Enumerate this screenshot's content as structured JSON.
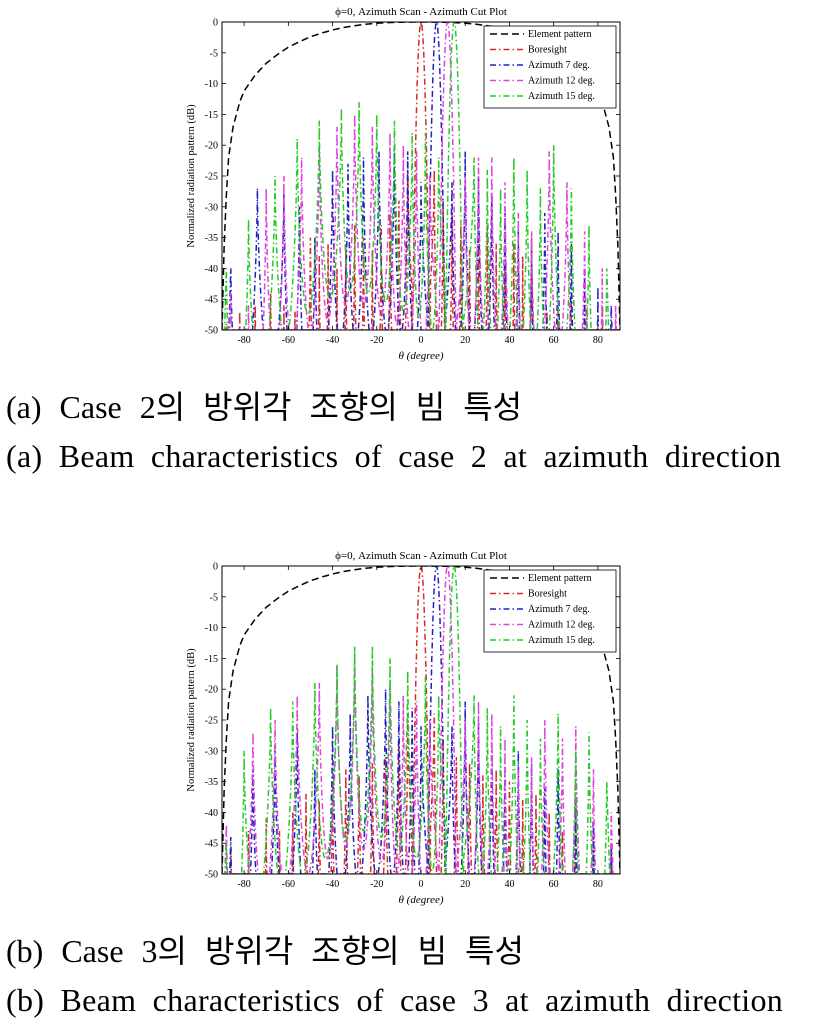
{
  "figures": [
    {
      "caption_ko": "(a) Case 2의 방위각 조향의 빔 특성",
      "caption_en": "(a) Beam characteristics of case 2 at azimuth direction"
    },
    {
      "caption_ko": "(b) Case 3의 방위각 조향의 빔 특성",
      "caption_en": "(b) Beam characteristics of case 3 at azimuth direction"
    }
  ],
  "chart_data": [
    {
      "type": "line",
      "title": "ϕ=0, Azimuth Scan - Azimuth Cut Plot",
      "xlabel": "θ (degree)",
      "ylabel": "Normalized radiation pattern (dB)",
      "xlim": [
        -90,
        90
      ],
      "ylim": [
        -50,
        0
      ],
      "xticks": [
        -80,
        -60,
        -40,
        -20,
        0,
        20,
        40,
        60,
        80
      ],
      "yticks": [
        0,
        -5,
        -10,
        -15,
        -20,
        -25,
        -30,
        -35,
        -40,
        -45,
        -50
      ],
      "grid": false,
      "legend_position": "top-right",
      "series": [
        {
          "name": "Element pattern",
          "color": "#000000",
          "dash": "dashed",
          "x": [
            -90,
            -89,
            -88,
            -87,
            -85,
            -82,
            -80,
            -75,
            -70,
            -65,
            -60,
            -55,
            -50,
            -45,
            -40,
            -35,
            -30,
            -25,
            -20,
            -15,
            -10,
            -5,
            0,
            5,
            10,
            15,
            20,
            25,
            30,
            35,
            40,
            45,
            50,
            55,
            60,
            65,
            70,
            75,
            80,
            82,
            85,
            87,
            88,
            89,
            90
          ],
          "y": [
            -50,
            -36,
            -28,
            -22,
            -17,
            -13,
            -11.2,
            -8.6,
            -6.7,
            -5.3,
            -4.1,
            -3.2,
            -2.4,
            -1.8,
            -1.3,
            -0.9,
            -0.6,
            -0.35,
            -0.2,
            -0.1,
            -0.04,
            -0.01,
            0,
            -0.01,
            -0.04,
            -0.1,
            -0.2,
            -0.35,
            -0.6,
            -0.9,
            -1.3,
            -1.8,
            -2.4,
            -3.2,
            -4.1,
            -5.3,
            -6.7,
            -8.6,
            -11.2,
            -13,
            -17,
            -22,
            -28,
            -36,
            -50
          ]
        },
        {
          "name": "Boresight",
          "color": "#d42a2a",
          "dash": "dashdot",
          "center": 0,
          "lobes": [
            [
              -88,
              -49
            ],
            [
              -82,
              -47
            ],
            [
              -75,
              -46
            ],
            [
              -68,
              -44
            ],
            [
              -62,
              -46
            ],
            [
              -57,
              -47
            ],
            [
              -50,
              -35
            ],
            [
              -46,
              -38
            ],
            [
              -42,
              -36
            ],
            [
              -38,
              -40
            ],
            [
              -34,
              -36
            ],
            [
              -30,
              -33
            ],
            [
              -26,
              -35
            ],
            [
              -22,
              -37
            ],
            [
              -18,
              -33
            ],
            [
              -14,
              -31
            ],
            [
              -10,
              -29
            ],
            [
              -6,
              -24
            ],
            [
              6,
              -24
            ],
            [
              10,
              -29
            ],
            [
              14,
              -31
            ],
            [
              18,
              -33
            ],
            [
              22,
              -37
            ],
            [
              26,
              -35
            ],
            [
              30,
              -33
            ],
            [
              34,
              -36
            ],
            [
              38,
              -40
            ],
            [
              42,
              -36
            ],
            [
              46,
              -38
            ],
            [
              50,
              -35
            ],
            [
              57,
              -47
            ],
            [
              62,
              -46
            ],
            [
              68,
              -44
            ],
            [
              75,
              -46
            ],
            [
              82,
              -47
            ],
            [
              88,
              -49
            ]
          ]
        },
        {
          "name": "Azimuth 7 deg.",
          "color": "#2020c0",
          "dash": "dashdot",
          "center": 7,
          "lobes": [
            [
              -86,
              -40
            ],
            [
              -74,
              -27
            ],
            [
              -62,
              -28
            ],
            [
              -55,
              -30
            ],
            [
              -48,
              -35
            ],
            [
              -40,
              -24
            ],
            [
              -33,
              -23
            ],
            [
              -26,
              -22
            ],
            [
              -19,
              -21
            ],
            [
              -12,
              -20
            ],
            [
              -6,
              -21
            ],
            [
              0,
              -26
            ],
            [
              14,
              -26
            ],
            [
              20,
              -21
            ],
            [
              26,
              -25
            ],
            [
              32,
              -28
            ],
            [
              38,
              -31
            ],
            [
              44,
              -34
            ],
            [
              50,
              -36
            ],
            [
              56,
              -31
            ],
            [
              62,
              -34
            ],
            [
              68,
              -36
            ],
            [
              74,
              -41
            ],
            [
              80,
              -43
            ],
            [
              86,
              -46
            ]
          ]
        },
        {
          "name": "Azimuth 12 deg.",
          "color": "#e040e0",
          "dash": "dashdot",
          "center": 12,
          "lobes": [
            [
              -86,
              -44
            ],
            [
              -78,
              -46
            ],
            [
              -70,
              -27
            ],
            [
              -62,
              -25
            ],
            [
              -54,
              -22
            ],
            [
              -46,
              -20
            ],
            [
              -38,
              -17
            ],
            [
              -30,
              -15
            ],
            [
              -22,
              -17
            ],
            [
              -14,
              -18
            ],
            [
              -8,
              -20
            ],
            [
              -2,
              -21
            ],
            [
              4,
              -25
            ],
            [
              20,
              -25
            ],
            [
              26,
              -22
            ],
            [
              32,
              -22
            ],
            [
              38,
              -26
            ],
            [
              44,
              -31
            ],
            [
              50,
              -34
            ],
            [
              58,
              -21
            ],
            [
              66,
              -26
            ],
            [
              74,
              -34
            ],
            [
              82,
              -40
            ],
            [
              88,
              -46
            ]
          ]
        },
        {
          "name": "Azimuth 15 deg.",
          "color": "#22cc22",
          "dash": "dashdot",
          "center": 15,
          "lobes": [
            [
              -88,
              -40
            ],
            [
              -78,
              -32
            ],
            [
              -66,
              -25
            ],
            [
              -56,
              -19
            ],
            [
              -46,
              -16
            ],
            [
              -36,
              -14
            ],
            [
              -28,
              -13
            ],
            [
              -20,
              -15
            ],
            [
              -12,
              -16
            ],
            [
              -4,
              -18
            ],
            [
              2,
              -18
            ],
            [
              8,
              -22
            ],
            [
              24,
              -22
            ],
            [
              30,
              -24
            ],
            [
              36,
              -27
            ],
            [
              42,
              -22
            ],
            [
              48,
              -24
            ],
            [
              54,
              -27
            ],
            [
              60,
              -20
            ],
            [
              68,
              -27
            ],
            [
              76,
              -33
            ],
            [
              84,
              -40
            ]
          ]
        }
      ]
    },
    {
      "type": "line",
      "title": "ϕ=0, Azimuth Scan - Azimuth Cut Plot",
      "xlabel": "θ (degree)",
      "ylabel": "Normalized radiation pattern (dB)",
      "xlim": [
        -90,
        90
      ],
      "ylim": [
        -50,
        0
      ],
      "xticks": [
        -80,
        -60,
        -40,
        -20,
        0,
        20,
        40,
        60,
        80
      ],
      "yticks": [
        0,
        -5,
        -10,
        -15,
        -20,
        -25,
        -30,
        -35,
        -40,
        -45,
        -50
      ],
      "grid": false,
      "legend_position": "top-right",
      "series": [
        {
          "name": "Element pattern",
          "color": "#000000",
          "dash": "dashed",
          "x": [
            -90,
            -89,
            -88,
            -87,
            -85,
            -82,
            -80,
            -75,
            -70,
            -65,
            -60,
            -55,
            -50,
            -45,
            -40,
            -35,
            -30,
            -25,
            -20,
            -15,
            -10,
            -5,
            0,
            5,
            10,
            15,
            20,
            25,
            30,
            35,
            40,
            45,
            50,
            55,
            60,
            65,
            70,
            75,
            80,
            82,
            85,
            87,
            88,
            89,
            90
          ],
          "y": [
            -50,
            -36,
            -28,
            -22,
            -17,
            -13,
            -11.2,
            -8.6,
            -6.7,
            -5.3,
            -4.1,
            -3.2,
            -2.4,
            -1.8,
            -1.3,
            -0.9,
            -0.6,
            -0.35,
            -0.2,
            -0.1,
            -0.04,
            -0.01,
            0,
            -0.01,
            -0.04,
            -0.1,
            -0.2,
            -0.35,
            -0.6,
            -0.9,
            -1.3,
            -1.8,
            -2.4,
            -3.2,
            -4.1,
            -5.3,
            -6.7,
            -8.6,
            -11.2,
            -13,
            -17,
            -22,
            -28,
            -36,
            -50
          ]
        },
        {
          "name": "Boresight",
          "color": "#d42a2a",
          "dash": "dashdot",
          "center": 0,
          "lobes": [
            [
              -86,
              -46
            ],
            [
              -78,
              -43
            ],
            [
              -70,
              -41
            ],
            [
              -64,
              -43
            ],
            [
              -58,
              -40
            ],
            [
              -52,
              -37
            ],
            [
              -46,
              -38
            ],
            [
              -40,
              -35
            ],
            [
              -34,
              -33
            ],
            [
              -28,
              -34
            ],
            [
              -22,
              -32
            ],
            [
              -16,
              -31
            ],
            [
              -10,
              -28
            ],
            [
              -6,
              -24
            ],
            [
              6,
              -24
            ],
            [
              10,
              -28
            ],
            [
              16,
              -31
            ],
            [
              22,
              -32
            ],
            [
              28,
              -34
            ],
            [
              34,
              -33
            ],
            [
              40,
              -35
            ],
            [
              46,
              -38
            ],
            [
              52,
              -37
            ],
            [
              58,
              -40
            ],
            [
              64,
              -43
            ],
            [
              70,
              -41
            ],
            [
              78,
              -43
            ],
            [
              86,
              -46
            ]
          ]
        },
        {
          "name": "Azimuth 7 deg.",
          "color": "#2020c0",
          "dash": "dashdot",
          "center": 7,
          "lobes": [
            [
              -86,
              -44
            ],
            [
              -76,
              -33
            ],
            [
              -66,
              -30
            ],
            [
              -56,
              -27
            ],
            [
              -48,
              -33
            ],
            [
              -40,
              -26
            ],
            [
              -32,
              -24
            ],
            [
              -24,
              -21
            ],
            [
              -16,
              -20
            ],
            [
              -10,
              -22
            ],
            [
              -4,
              -23
            ],
            [
              0,
              -26
            ],
            [
              14,
              -26
            ],
            [
              20,
              -22
            ],
            [
              26,
              -25
            ],
            [
              32,
              -29
            ],
            [
              38,
              -33
            ],
            [
              44,
              -30
            ],
            [
              50,
              -32
            ],
            [
              56,
              -36
            ],
            [
              62,
              -33
            ],
            [
              70,
              -38
            ],
            [
              78,
              -42
            ],
            [
              86,
              -45
            ]
          ]
        },
        {
          "name": "Azimuth 12 deg.",
          "color": "#e040e0",
          "dash": "dashdot",
          "center": 12,
          "lobes": [
            [
              -88,
              -42
            ],
            [
              -76,
              -27
            ],
            [
              -66,
              -25
            ],
            [
              -56,
              -21
            ],
            [
              -46,
              -19
            ],
            [
              -38,
              -16
            ],
            [
              -30,
              -15
            ],
            [
              -22,
              -17
            ],
            [
              -14,
              -19
            ],
            [
              -8,
              -21
            ],
            [
              -2,
              -22
            ],
            [
              4,
              -25
            ],
            [
              20,
              -25
            ],
            [
              26,
              -22
            ],
            [
              32,
              -24
            ],
            [
              38,
              -28
            ],
            [
              44,
              -33
            ],
            [
              50,
              -31
            ],
            [
              56,
              -25
            ],
            [
              64,
              -28
            ],
            [
              70,
              -26
            ],
            [
              78,
              -33
            ],
            [
              86,
              -40
            ]
          ]
        },
        {
          "name": "Azimuth 15 deg.",
          "color": "#22cc22",
          "dash": "dashdot",
          "center": 15,
          "lobes": [
            [
              -88,
              -45
            ],
            [
              -80,
              -30
            ],
            [
              -68,
              -23
            ],
            [
              -58,
              -22
            ],
            [
              -48,
              -19
            ],
            [
              -38,
              -16
            ],
            [
              -30,
              -13
            ],
            [
              -22,
              -13
            ],
            [
              -14,
              -15
            ],
            [
              -6,
              -17
            ],
            [
              2,
              -18
            ],
            [
              8,
              -21
            ],
            [
              24,
              -21
            ],
            [
              30,
              -23
            ],
            [
              36,
              -26
            ],
            [
              42,
              -21
            ],
            [
              48,
              -25
            ],
            [
              54,
              -28
            ],
            [
              62,
              -24
            ],
            [
              70,
              -30
            ],
            [
              76,
              -27
            ],
            [
              84,
              -35
            ]
          ]
        }
      ]
    }
  ]
}
